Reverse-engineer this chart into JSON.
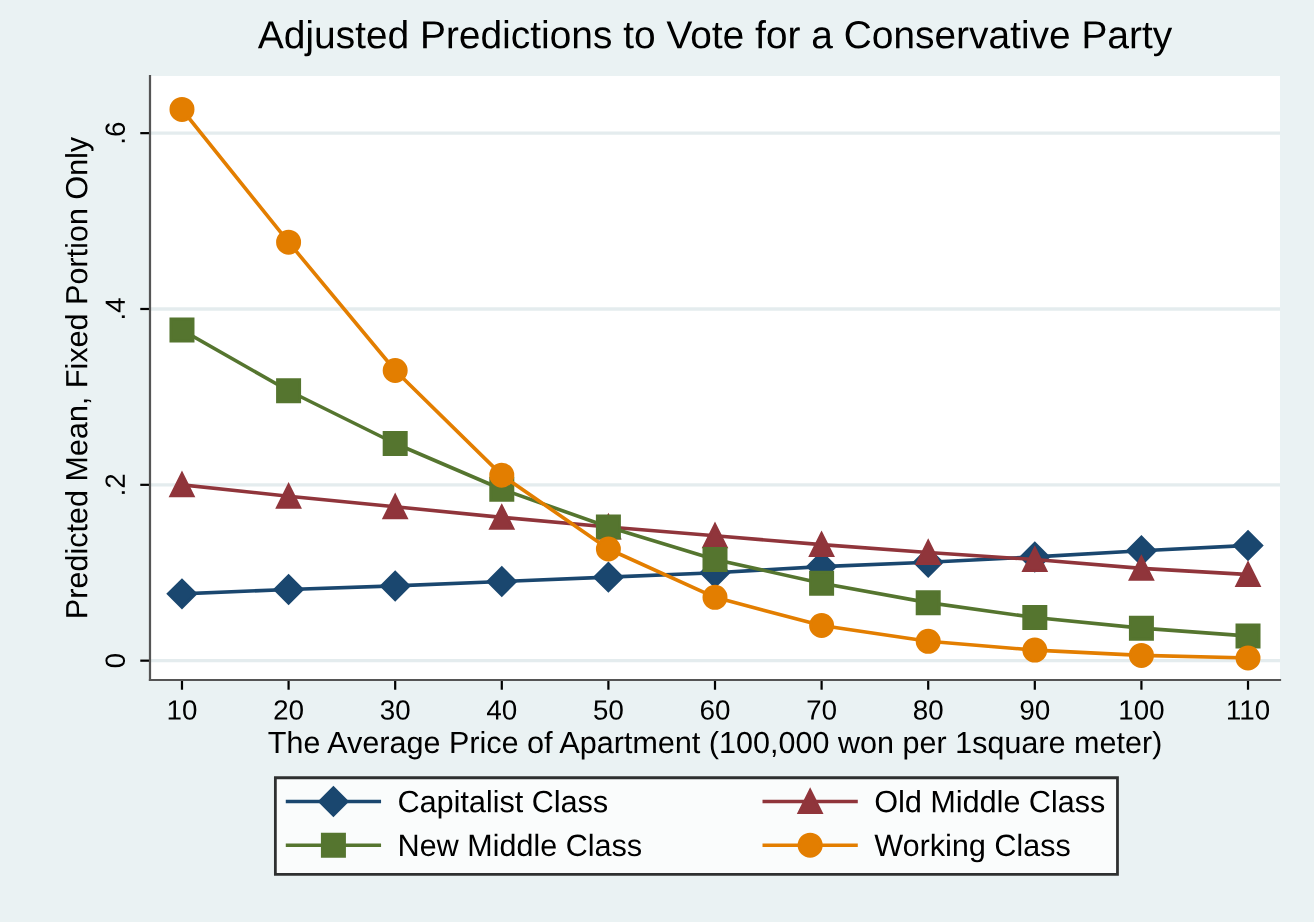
{
  "chart_data": {
    "type": "line",
    "title": "Adjusted Predictions to Vote for a Conservative Party",
    "xlabel": "The Average Price of Apartment (100,000 won per 1square meter)",
    "ylabel": "Predicted Mean, Fixed Portion Only",
    "x": [
      10,
      20,
      30,
      40,
      50,
      60,
      70,
      80,
      90,
      100,
      110
    ],
    "series": [
      {
        "name": "Capitalist Class",
        "color": "#1a476f",
        "marker": "diamond",
        "values": [
          0.076,
          0.081,
          0.085,
          0.09,
          0.095,
          0.1,
          0.107,
          0.112,
          0.118,
          0.125,
          0.131
        ]
      },
      {
        "name": "Old Middle Class",
        "color": "#90353b",
        "marker": "triangle",
        "values": [
          0.2,
          0.187,
          0.175,
          0.163,
          0.152,
          0.142,
          0.132,
          0.123,
          0.115,
          0.105,
          0.098
        ]
      },
      {
        "name": "New Middle Class",
        "color": "#55752f",
        "marker": "square",
        "values": [
          0.376,
          0.307,
          0.247,
          0.195,
          0.152,
          0.115,
          0.088,
          0.066,
          0.049,
          0.037,
          0.028
        ]
      },
      {
        "name": "Working Class",
        "color": "#e37e00",
        "marker": "circle",
        "values": [
          0.627,
          0.476,
          0.33,
          0.211,
          0.127,
          0.072,
          0.04,
          0.022,
          0.012,
          0.006,
          0.003
        ]
      }
    ],
    "xlim": [
      7,
      113
    ],
    "xticks": [
      10,
      20,
      30,
      40,
      50,
      60,
      70,
      80,
      90,
      100,
      110
    ],
    "ylim": [
      -0.022,
      0.665
    ],
    "yticks": [
      {
        "value": 0,
        "label": "0"
      },
      {
        "value": 0.2,
        "label": ".2"
      },
      {
        "value": 0.4,
        "label": ".4"
      },
      {
        "value": 0.6,
        "label": ".6"
      }
    ],
    "grid": "y",
    "legend": "bottom",
    "line_style": "solid"
  }
}
